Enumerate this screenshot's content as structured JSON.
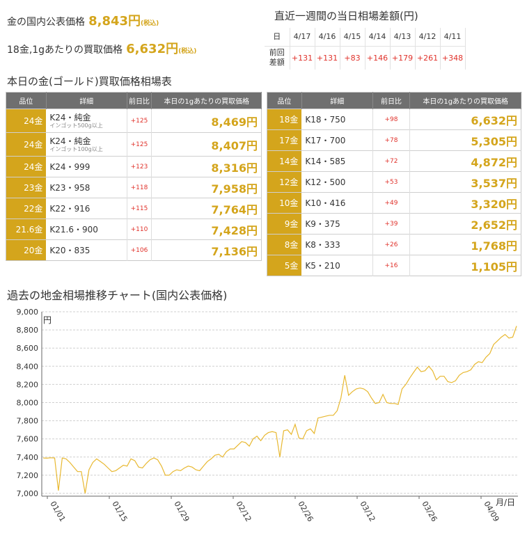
{
  "summary": {
    "gold_label": "金の国内公表価格",
    "gold_value": "8,843円",
    "gold_tax": "(税込)",
    "k18_label": "18金,1gあたりの買取価格",
    "k18_value": "6,632円",
    "k18_tax": "(税込)"
  },
  "weekly": {
    "title": "直近一週間の当日相場差額(円)",
    "row_day_label": "日",
    "row_diff_label_1": "前回",
    "row_diff_label_2": "差額",
    "days": [
      "4/17",
      "4/16",
      "4/15",
      "4/14",
      "4/13",
      "4/12",
      "4/11"
    ],
    "diffs": [
      "+131",
      "+131",
      "+83",
      "+146",
      "+179",
      "+261",
      "+348"
    ]
  },
  "market": {
    "title": "本日の金(ゴールド)買取価格相場表",
    "headers": [
      "品位",
      "詳細",
      "前日比",
      "本日の1gあたりの買取価格"
    ],
    "left_rows": [
      {
        "grade": "24金",
        "detail": "K24・純金",
        "sub": "インゴット500g以上",
        "diff": "+125",
        "price": "8,469円"
      },
      {
        "grade": "24金",
        "detail": "K24・純金",
        "sub": "インゴット100g以上",
        "diff": "+125",
        "price": "8,407円"
      },
      {
        "grade": "24金",
        "detail": "K24・999",
        "sub": "",
        "diff": "+123",
        "price": "8,316円"
      },
      {
        "grade": "23金",
        "detail": "K23・958",
        "sub": "",
        "diff": "+118",
        "price": "7,958円"
      },
      {
        "grade": "22金",
        "detail": "K22・916",
        "sub": "",
        "diff": "+115",
        "price": "7,764円"
      },
      {
        "grade": "21.6金",
        "detail": "K21.6・900",
        "sub": "",
        "diff": "+110",
        "price": "7,428円"
      },
      {
        "grade": "20金",
        "detail": "K20・835",
        "sub": "",
        "diff": "+106",
        "price": "7,136円"
      }
    ],
    "right_rows": [
      {
        "grade": "18金",
        "detail": "K18・750",
        "diff": "+98",
        "price": "6,632円"
      },
      {
        "grade": "17金",
        "detail": "K17・700",
        "diff": "+78",
        "price": "5,305円"
      },
      {
        "grade": "14金",
        "detail": "K14・585",
        "diff": "+72",
        "price": "4,872円"
      },
      {
        "grade": "12金",
        "detail": "K12・500",
        "diff": "+53",
        "price": "3,537円"
      },
      {
        "grade": "10金",
        "detail": "K10・416",
        "diff": "+49",
        "price": "3,320円"
      },
      {
        "grade": "9金",
        "detail": "K9・375",
        "diff": "+39",
        "price": "2,652円"
      },
      {
        "grade": "8金",
        "detail": "K8・333",
        "diff": "+26",
        "price": "1,768円"
      },
      {
        "grade": "5金",
        "detail": "K5・210",
        "diff": "+16",
        "price": "1,105円"
      }
    ]
  },
  "chart": {
    "title": "過去の地金相場推移チャート(国内公表価格)",
    "line_color": "#e8b830"
  },
  "chart_data": {
    "type": "line",
    "title": "",
    "ylabel": "円",
    "xlabel": "月/日",
    "ylim": [
      7000,
      9000
    ],
    "y_ticks": [
      "9,000",
      "8,800",
      "8,600",
      "8,400",
      "8,200",
      "8,000",
      "7,800",
      "7,600",
      "7,400",
      "7,200",
      "7,000"
    ],
    "x_ticks": [
      "01/01",
      "01/15",
      "01/29",
      "02/12",
      "02/26",
      "03/12",
      "03/26",
      "04/09"
    ],
    "grid": true,
    "series": [
      {
        "values": [
          7390,
          7388,
          7392,
          7390,
          7030,
          7390,
          7380,
          7340,
          7290,
          7240,
          7240,
          7000,
          7260,
          7340,
          7380,
          7350,
          7320,
          7280,
          7240,
          7250,
          7280,
          7310,
          7300,
          7380,
          7360,
          7290,
          7280,
          7330,
          7370,
          7390,
          7370,
          7300,
          7200,
          7200,
          7240,
          7260,
          7250,
          7280,
          7300,
          7290,
          7260,
          7250,
          7300,
          7350,
          7380,
          7420,
          7430,
          7400,
          7460,
          7490,
          7490,
          7530,
          7570,
          7560,
          7520,
          7600,
          7630,
          7580,
          7640,
          7670,
          7680,
          7670,
          7400,
          7690,
          7700,
          7650,
          7760,
          7610,
          7600,
          7690,
          7710,
          7660,
          7830,
          7840,
          7850,
          7860,
          7860,
          7910,
          8050,
          8300,
          8080,
          8120,
          8150,
          8160,
          8150,
          8120,
          8050,
          7990,
          8000,
          8090,
          8000,
          7990,
          7990,
          7980,
          8150,
          8200,
          8270,
          8330,
          8390,
          8340,
          8350,
          8400,
          8350,
          8250,
          8290,
          8290,
          8230,
          8220,
          8240,
          8300,
          8330,
          8340,
          8360,
          8420,
          8450,
          8440,
          8500,
          8540,
          8640,
          8680,
          8720,
          8750,
          8710,
          8720,
          8843
        ]
      }
    ]
  }
}
